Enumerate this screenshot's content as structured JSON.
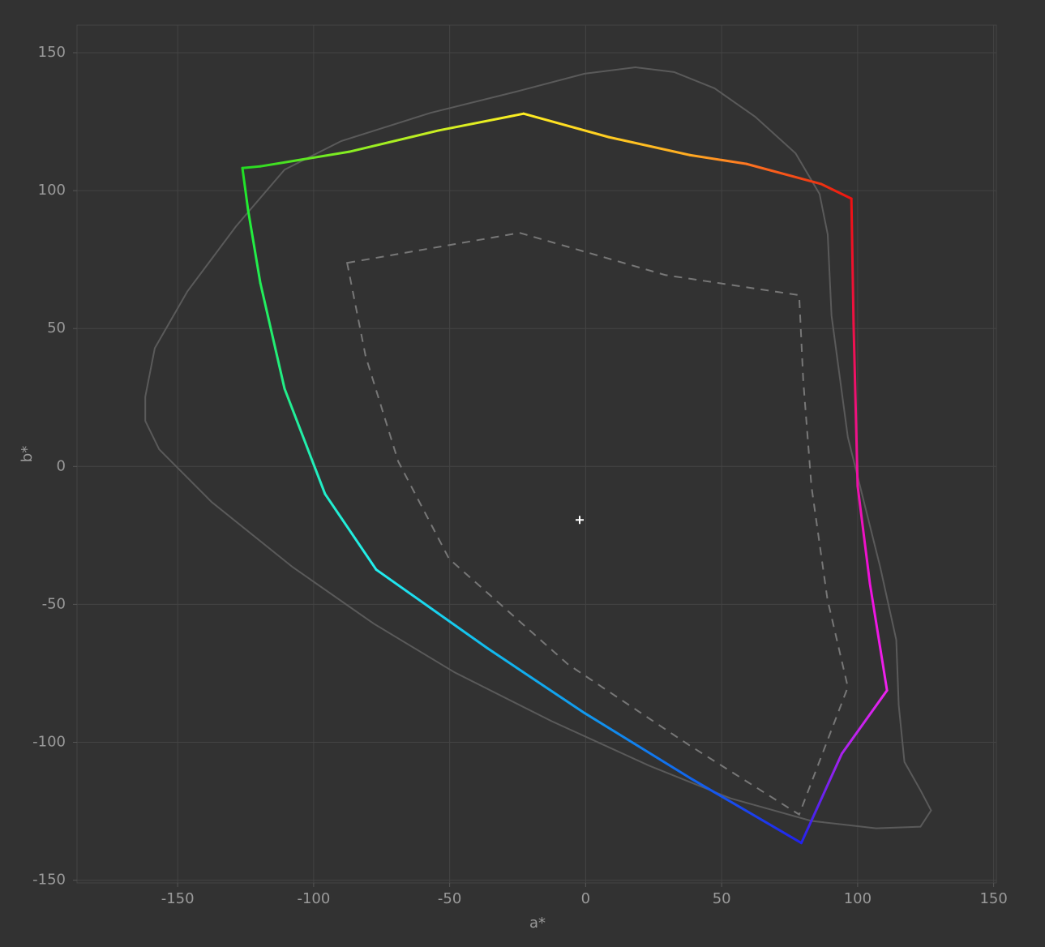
{
  "chart_data": {
    "type": "line",
    "x_label": "a*",
    "y_label": "b*",
    "xlim": [
      -187,
      151
    ],
    "ylim": [
      -151,
      160
    ],
    "xticks": [
      -150,
      -100,
      -50,
      0,
      50,
      100,
      150
    ],
    "yticks": [
      -150,
      -100,
      -50,
      0,
      50,
      100,
      150
    ],
    "grid": true,
    "series": [
      {
        "color": "#5a5a5a",
        "dash": "none",
        "closed": true,
        "x": [
          18.3,
          -0.4,
          -24.3,
          -57,
          -89.8,
          -110.7,
          -128.6,
          -146.4,
          -158.4,
          -161.9,
          -161.9,
          -156.8,
          -137.5,
          -107.7,
          -77.9,
          -48.1,
          -12.4,
          23.4,
          53.2,
          83,
          106.8,
          123.1,
          127,
          123.1,
          117.2,
          115.1,
          114.2,
          108.3,
          96.4,
          90.4,
          89,
          86,
          77.2,
          62.3,
          47.4,
          32.5
        ],
        "values": [
          144.7,
          142.4,
          136.2,
          128.2,
          118,
          107.6,
          87,
          63.5,
          42.9,
          25.3,
          16.5,
          6.2,
          -12.9,
          -36.5,
          -57,
          -74.7,
          -92.4,
          -108.5,
          -120.3,
          -128.5,
          -131.2,
          -130.6,
          -124.7,
          -117.4,
          -107.1,
          -86.5,
          -62.9,
          -36.5,
          10.6,
          54.7,
          84.1,
          98.8,
          113.5,
          126.8,
          137.1,
          143
        ]
      },
      {
        "color": "#777777",
        "dash": "10 8",
        "closed": true,
        "x": [
          -87.7,
          -24.3,
          29.3,
          78.5,
          80,
          83,
          88.9,
          96.4,
          78.5,
          38.3,
          -6.4,
          -50.2,
          -68.9,
          -80.9
        ],
        "values": [
          73.8,
          84.7,
          69.4,
          62.1,
          31.2,
          -7.1,
          -48.2,
          -80,
          -126.2,
          -101.2,
          -71.8,
          -33.5,
          1.8,
          40
        ]
      },
      {
        "closed": true,
        "x": [
          -126.2,
          -119.6,
          -86.9,
          -54.1,
          -22.8,
          8.5,
          38.3,
          59.1,
          86.6,
          97.7,
          98.5,
          100,
          104.5,
          110.8,
          94.2,
          79.3,
          38.3,
          -0.4,
          -36.1,
          -77,
          -95.8,
          -110.7,
          -119.6,
          -124.1
        ],
        "values": [
          108.2,
          108.8,
          114.1,
          121.8,
          127.9,
          119.4,
          112.9,
          109.7,
          102.4,
          97.1,
          51.8,
          -7.1,
          -42.4,
          -81.2,
          -104.1,
          -136.5,
          -112.9,
          -89.4,
          -65.9,
          -37.4,
          -10,
          28.2,
          66.5,
          92.9
        ],
        "colors": [
          "#22dd22",
          "#33dd22",
          "#88ee22",
          "#ccee22",
          "#ffee22",
          "#ffcc22",
          "#ffaa22",
          "#ff7722",
          "#ee3311",
          "#ee1111",
          "#ee1144",
          "#ee11aa",
          "#ee11dd",
          "#ee22ee",
          "#aa22ee",
          "#2222ee",
          "#1166ee",
          "#1199ee",
          "#11bbee",
          "#22eeee",
          "#22eecc",
          "#22ee88",
          "#22ee55",
          "#22ee33"
        ]
      }
    ],
    "marker": {
      "x": -2.2,
      "value": -19.4,
      "color": "#ffffff"
    }
  }
}
